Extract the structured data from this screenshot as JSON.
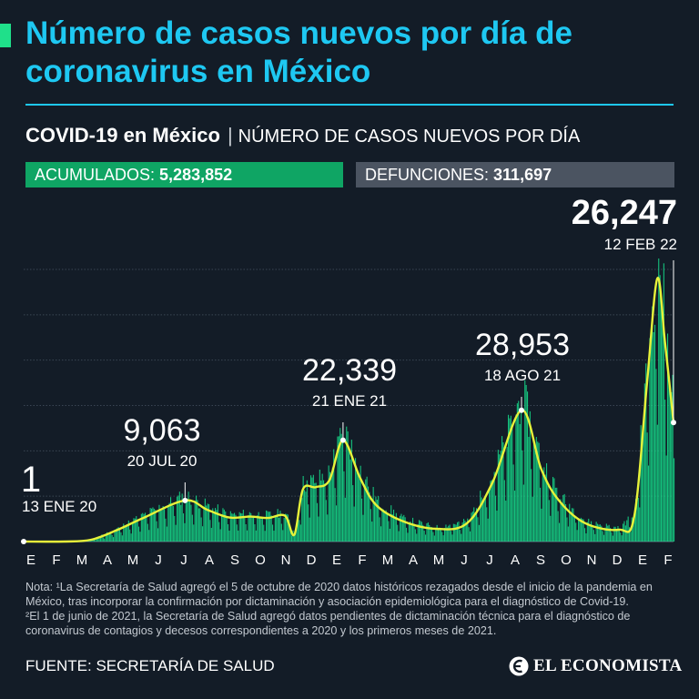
{
  "header": {
    "title": "Número de casos nuevos por día de coronavirus en México",
    "subtitle_strong": "COVID-19 en México",
    "subtitle_sep": "|",
    "subtitle_desc": "NÚMERO DE CASOS NUEVOS POR DÍA"
  },
  "stats": {
    "acumulados_label": "ACUMULADOS:",
    "acumulados_value": "5,283,852",
    "defunciones_label": "DEFUNCIONES:",
    "defunciones_value": "311,697"
  },
  "colors": {
    "background": "#131c27",
    "title": "#1ec8f2",
    "bars": "#16d98a",
    "average_line": "#e7f23a",
    "acumulados_box": "#0fa564",
    "defunciones_box": "#4b5461"
  },
  "chart_data": {
    "type": "area",
    "series_description_bars": "casos nuevos por día",
    "series_description_line": "promedio",
    "x_month_labels": [
      "E",
      "F",
      "M",
      "A",
      "M",
      "J",
      "J",
      "A",
      "S",
      "O",
      "N",
      "D",
      "E",
      "F",
      "M",
      "A",
      "M",
      "J",
      "J",
      "A",
      "S",
      "O",
      "N",
      "D",
      "E",
      "F"
    ],
    "ylim": [
      0,
      60000
    ],
    "grid": true,
    "average_curve": [
      {
        "date": "2020-01-13",
        "value": 1
      },
      {
        "date": "2020-03-01",
        "value": 0
      },
      {
        "date": "2020-04-01",
        "value": 400
      },
      {
        "date": "2020-05-01",
        "value": 2500
      },
      {
        "date": "2020-06-01",
        "value": 5200
      },
      {
        "date": "2020-07-20",
        "value": 9063
      },
      {
        "date": "2020-08-15",
        "value": 7000
      },
      {
        "date": "2020-09-10",
        "value": 5300
      },
      {
        "date": "2020-10-05",
        "value": 5500
      },
      {
        "date": "2020-10-25",
        "value": 5200
      },
      {
        "date": "2020-11-14",
        "value": 5700
      },
      {
        "date": "2020-11-25",
        "value": 1500
      },
      {
        "date": "2020-12-05",
        "value": 11500
      },
      {
        "date": "2020-12-20",
        "value": 12000
      },
      {
        "date": "2021-01-05",
        "value": 13500
      },
      {
        "date": "2021-01-21",
        "value": 22339
      },
      {
        "date": "2021-02-10",
        "value": 14000
      },
      {
        "date": "2021-03-01",
        "value": 8000
      },
      {
        "date": "2021-04-01",
        "value": 4500
      },
      {
        "date": "2021-05-10",
        "value": 2800
      },
      {
        "date": "2021-06-15",
        "value": 4000
      },
      {
        "date": "2021-07-15",
        "value": 13000
      },
      {
        "date": "2021-08-18",
        "value": 28953
      },
      {
        "date": "2021-09-10",
        "value": 16000
      },
      {
        "date": "2021-10-01",
        "value": 9000
      },
      {
        "date": "2021-11-01",
        "value": 4000
      },
      {
        "date": "2021-12-10",
        "value": 2600
      },
      {
        "date": "2021-12-28",
        "value": 5500
      },
      {
        "date": "2022-01-12",
        "value": 35000
      },
      {
        "date": "2022-01-24",
        "value": 58000
      },
      {
        "date": "2022-02-02",
        "value": 44000
      },
      {
        "date": "2022-02-12",
        "value": 26247
      }
    ],
    "annotations": [
      {
        "date": "2020-01-13",
        "value": 1,
        "value_label": "1",
        "date_label": "13 ENE 20"
      },
      {
        "date": "2020-07-20",
        "value": 9063,
        "value_label": "9,063",
        "date_label": "20 JUL 20"
      },
      {
        "date": "2021-01-21",
        "value": 22339,
        "value_label": "22,339",
        "date_label": "21 ENE 21"
      },
      {
        "date": "2021-08-18",
        "value": 28953,
        "value_label": "28,953",
        "date_label": "18 AGO 21"
      },
      {
        "date": "2022-02-12",
        "value": 26247,
        "value_label": "26,247",
        "date_label": "12 FEB 22"
      }
    ]
  },
  "notes": {
    "note1": "Nota: ¹La Secretaría de Salud agregó el 5 de octubre de 2020 datos históricos rezagados desde el inicio de la pandemia en México, tras incorporar la confirmación por dictaminación y asociación epidemiológica para el diagnóstico de Covid-19.",
    "note2": "²El 1 de junio de 2021, la Secretaría de Salud agregó datos pendientes de dictaminación técnica para el diagnóstico de coronavirus de contagios y decesos correspondientes a 2020 y los primeros meses de 2021."
  },
  "footer": {
    "source": "FUENTE: SECRETARÍA DE SALUD",
    "logo_text": "EL ECONOMISTA",
    "logo_icon": "el-economista-logo-mark"
  }
}
